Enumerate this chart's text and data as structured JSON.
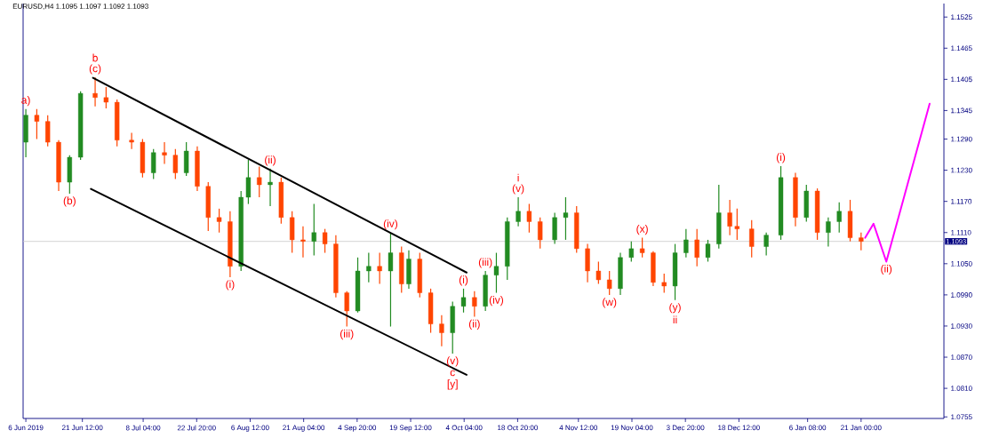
{
  "chart_data": {
    "type": "candlestick",
    "title": "EURUSD,H4 1.1095 1.1097 1.1092 1.1093",
    "x": [
      "2019-06-06",
      "2019-06-09",
      "2019-06-12",
      "2019-06-15",
      "2019-06-18",
      "2019-06-21",
      "2019-06-25",
      "2019-06-28",
      "2019-07-01",
      "2019-07-05",
      "2019-07-08",
      "2019-07-11",
      "2019-07-14",
      "2019-07-17",
      "2019-07-20",
      "2019-07-23",
      "2019-07-26",
      "2019-07-29",
      "2019-08-01",
      "2019-08-04",
      "2019-08-06",
      "2019-08-09",
      "2019-08-12",
      "2019-08-15",
      "2019-08-18",
      "2019-08-21",
      "2019-08-24",
      "2019-08-27",
      "2019-08-30",
      "2019-09-02",
      "2019-09-05",
      "2019-09-08",
      "2019-09-11",
      "2019-09-14",
      "2019-09-17",
      "2019-09-19",
      "2019-09-22",
      "2019-09-25",
      "2019-09-28",
      "2019-10-01",
      "2019-10-04",
      "2019-10-07",
      "2019-10-10",
      "2019-10-13",
      "2019-10-16",
      "2019-10-19",
      "2019-10-22",
      "2019-10-25",
      "2019-10-29",
      "2019-11-01",
      "2019-11-04",
      "2019-11-07",
      "2019-11-10",
      "2019-11-13",
      "2019-11-16",
      "2019-11-19",
      "2019-11-22",
      "2019-11-25",
      "2019-11-28",
      "2019-12-01",
      "2019-12-04",
      "2019-12-07",
      "2019-12-10",
      "2019-12-13",
      "2019-12-16",
      "2019-12-18",
      "2019-12-22",
      "2019-12-26",
      "2019-12-30",
      "2020-01-03",
      "2020-01-06",
      "2020-01-09",
      "2020-01-12",
      "2020-01-15",
      "2020-01-18",
      "2020-01-21"
    ],
    "ohlc": [
      [
        1.1284,
        1.1348,
        1.1255,
        1.1336
      ],
      [
        1.1336,
        1.1348,
        1.129,
        1.1324
      ],
      [
        1.1324,
        1.1336,
        1.1276,
        1.1284
      ],
      [
        1.1284,
        1.1288,
        1.119,
        1.1207
      ],
      [
        1.1207,
        1.1259,
        1.1185,
        1.1255
      ],
      [
        1.1255,
        1.1382,
        1.125,
        1.1378
      ],
      [
        1.1378,
        1.1409,
        1.1353,
        1.137
      ],
      [
        1.137,
        1.139,
        1.1349,
        1.1361
      ],
      [
        1.1361,
        1.1366,
        1.1276,
        1.1288
      ],
      [
        1.1288,
        1.1302,
        1.1271,
        1.1284
      ],
      [
        1.1284,
        1.129,
        1.1216,
        1.1225
      ],
      [
        1.1225,
        1.1271,
        1.1213,
        1.1264
      ],
      [
        1.1264,
        1.1284,
        1.1242,
        1.1259
      ],
      [
        1.1259,
        1.1271,
        1.1213,
        1.1225
      ],
      [
        1.1225,
        1.1284,
        1.1219,
        1.1267
      ],
      [
        1.1267,
        1.1276,
        1.119,
        1.1199
      ],
      [
        1.1199,
        1.1207,
        1.1113,
        1.1139
      ],
      [
        1.1139,
        1.1156,
        1.111,
        1.1131
      ],
      [
        1.1131,
        1.1151,
        1.1024,
        1.1045
      ],
      [
        1.1045,
        1.119,
        1.1036,
        1.1178
      ],
      [
        1.1178,
        1.125,
        1.1165,
        1.1216
      ],
      [
        1.1216,
        1.1237,
        1.1178,
        1.1202
      ],
      [
        1.1202,
        1.1233,
        1.1161,
        1.1207
      ],
      [
        1.1207,
        1.1216,
        1.1127,
        1.1139
      ],
      [
        1.1139,
        1.1151,
        1.1071,
        1.1096
      ],
      [
        1.1096,
        1.1122,
        1.1062,
        1.1093
      ],
      [
        1.1093,
        1.1165,
        1.1066,
        1.111
      ],
      [
        1.111,
        1.1117,
        1.1071,
        1.1088
      ],
      [
        1.1088,
        1.1105,
        1.0985,
        1.0994
      ],
      [
        1.0994,
        1.0997,
        1.0929,
        1.0959
      ],
      [
        1.0959,
        1.1062,
        1.0956,
        1.1036
      ],
      [
        1.1036,
        1.1071,
        1.1014,
        1.1045
      ],
      [
        1.1045,
        1.1071,
        1.1011,
        1.1036
      ],
      [
        1.1036,
        1.111,
        1.0929,
        1.1071
      ],
      [
        1.1071,
        1.1083,
        1.0994,
        1.1011
      ],
      [
        1.1011,
        1.1076,
        1.1002,
        1.1059
      ],
      [
        1.1059,
        1.1071,
        1.0985,
        1.0994
      ],
      [
        1.0994,
        1.1002,
        1.0917,
        1.0934
      ],
      [
        1.0934,
        1.0951,
        1.0891,
        1.0917
      ],
      [
        1.0917,
        1.0977,
        1.0877,
        1.0968
      ],
      [
        1.0968,
        1.1002,
        1.0956,
        1.0985
      ],
      [
        1.0985,
        1.0997,
        1.0948,
        1.0968
      ],
      [
        1.0968,
        1.1036,
        1.0959,
        1.1028
      ],
      [
        1.1028,
        1.1071,
        1.0994,
        1.1045
      ],
      [
        1.1045,
        1.1139,
        1.1019,
        1.1131
      ],
      [
        1.1131,
        1.1178,
        1.1122,
        1.1151
      ],
      [
        1.1151,
        1.1165,
        1.111,
        1.1131
      ],
      [
        1.1131,
        1.1139,
        1.1079,
        1.1096
      ],
      [
        1.1096,
        1.1148,
        1.1088,
        1.1139
      ],
      [
        1.1139,
        1.1178,
        1.1096,
        1.1148
      ],
      [
        1.1148,
        1.1161,
        1.1071,
        1.1079
      ],
      [
        1.1079,
        1.1088,
        1.1014,
        1.1036
      ],
      [
        1.1036,
        1.1054,
        1.1011,
        1.1019
      ],
      [
        1.1019,
        1.1036,
        1.099,
        1.1002
      ],
      [
        1.1002,
        1.1071,
        1.099,
        1.1062
      ],
      [
        1.1062,
        1.1093,
        1.1054,
        1.1079
      ],
      [
        1.1079,
        1.11,
        1.1062,
        1.1071
      ],
      [
        1.1071,
        1.1074,
        1.1007,
        1.1014
      ],
      [
        1.1014,
        1.1031,
        1.0994,
        1.1007
      ],
      [
        1.1007,
        1.1088,
        1.098,
        1.1071
      ],
      [
        1.1071,
        1.1117,
        1.1062,
        1.1096
      ],
      [
        1.1096,
        1.1117,
        1.1045,
        1.1062
      ],
      [
        1.1062,
        1.1096,
        1.1054,
        1.1088
      ],
      [
        1.1088,
        1.1202,
        1.1079,
        1.1148
      ],
      [
        1.1148,
        1.1173,
        1.1105,
        1.1122
      ],
      [
        1.1122,
        1.1156,
        1.1096,
        1.1117
      ],
      [
        1.1117,
        1.1134,
        1.1062,
        1.1083
      ],
      [
        1.1083,
        1.111,
        1.1066,
        1.1105
      ],
      [
        1.1105,
        1.1238,
        1.1096,
        1.1216
      ],
      [
        1.1216,
        1.1225,
        1.1122,
        1.1139
      ],
      [
        1.1139,
        1.1202,
        1.1131,
        1.119
      ],
      [
        1.119,
        1.1195,
        1.1096,
        1.111
      ],
      [
        1.111,
        1.1139,
        1.1083,
        1.1131
      ],
      [
        1.1131,
        1.1168,
        1.111,
        1.1151
      ],
      [
        1.1151,
        1.1173,
        1.1093,
        1.11
      ],
      [
        1.11,
        1.111,
        1.1076,
        1.1093
      ]
    ],
    "colors": [
      "#228b22",
      "#ff4500",
      "#ff4500",
      "#ff4500",
      "#228b22",
      "#228b22",
      "#ff4500",
      "#ff4500",
      "#ff4500",
      "#ff4500",
      "#ff4500",
      "#228b22",
      "#ff4500",
      "#ff4500",
      "#228b22",
      "#ff4500",
      "#ff4500",
      "#ff4500",
      "#ff4500",
      "#228b22",
      "#228b22",
      "#ff4500",
      "#228b22",
      "#ff4500",
      "#ff4500",
      "#ff4500",
      "#228b22",
      "#ff4500",
      "#ff4500",
      "#ff4500",
      "#228b22",
      "#228b22",
      "#ff4500",
      "#228b22",
      "#ff4500",
      "#228b22",
      "#ff4500",
      "#ff4500",
      "#ff4500",
      "#228b22",
      "#228b22",
      "#ff4500",
      "#228b22",
      "#228b22",
      "#228b22",
      "#228b22",
      "#ff4500",
      "#ff4500",
      "#228b22",
      "#228b22",
      "#ff4500",
      "#ff4500",
      "#ff4500",
      "#ff4500",
      "#228b22",
      "#228b22",
      "#ff4500",
      "#ff4500",
      "#ff4500",
      "#228b22",
      "#228b22",
      "#ff4500",
      "#228b22",
      "#228b22",
      "#ff4500",
      "#ff4500",
      "#ff4500",
      "#228b22",
      "#228b22",
      "#ff4500",
      "#228b22",
      "#ff4500",
      "#228b22",
      "#228b22",
      "#ff4500",
      "#ff4500"
    ],
    "series": [
      {
        "type": "line",
        "color": "#000000",
        "x": [
          "2019-06-24T10:00",
          "2019-10-04T20:00"
        ],
        "values": [
          1.1408,
          1.1033
        ]
      },
      {
        "type": "line",
        "color": "#000000",
        "x": [
          "2019-06-23T20:00",
          "2019-10-04T20:00"
        ],
        "values": [
          1.1194,
          1.0836
        ]
      },
      {
        "type": "line",
        "color": "#ff00ff",
        "x": [
          "2020-01-22T03:00",
          "2020-01-24T10:00",
          "2020-01-27T22:00",
          "2020-02-08T19:00"
        ],
        "values": [
          1.11,
          1.1127,
          1.1054,
          1.1358
        ]
      }
    ],
    "xlim": [
      "2019-06-05T06:00",
      "2020-02-12T17:00"
    ],
    "xticks": [
      {
        "value": "2019-06-06T00:00",
        "label": "6 Jun 2019"
      },
      {
        "value": "2019-06-21T12:00",
        "label": "21 Jun 12:00"
      },
      {
        "value": "2019-07-08T04:00",
        "label": "8 Jul 04:00"
      },
      {
        "value": "2019-07-22T20:00",
        "label": "22 Jul 20:00"
      },
      {
        "value": "2019-08-06T12:00",
        "label": "6 Aug 12:00"
      },
      {
        "value": "2019-08-21T04:00",
        "label": "21 Aug 04:00"
      },
      {
        "value": "2019-09-04T20:00",
        "label": "4 Sep 20:00"
      },
      {
        "value": "2019-09-19T12:00",
        "label": "19 Sep 12:00"
      },
      {
        "value": "2019-10-04T04:00",
        "label": "4 Oct 04:00"
      },
      {
        "value": "2019-10-18T20:00",
        "label": "18 Oct 20:00"
      },
      {
        "value": "2019-11-04T12:00",
        "label": "4 Nov 12:00"
      },
      {
        "value": "2019-11-19T04:00",
        "label": "19 Nov 04:00"
      },
      {
        "value": "2019-12-03T20:00",
        "label": "3 Dec 20:00"
      },
      {
        "value": "2019-12-18T12:00",
        "label": "18 Dec 12:00"
      },
      {
        "value": "2020-01-06T08:00",
        "label": "6 Jan 08:00"
      },
      {
        "value": "2020-01-21T00:00",
        "label": "21 Jan 00:00"
      }
    ],
    "ylim": [
      1.0752,
      1.1551
    ],
    "yticks": [
      1.0755,
      {
        "value": 1.081,
        "label": "1.0810"
      },
      {
        "value": 1.087,
        "label": "1.0870"
      },
      {
        "value": 1.093,
        "label": "1.0930"
      },
      {
        "value": 1.099,
        "label": "1.0990"
      },
      {
        "value": 1.105,
        "label": "1.1050"
      },
      {
        "value": 1.111,
        "label": "1.1110"
      },
      {
        "value": 1.117,
        "label": "1.1170"
      },
      {
        "value": 1.123,
        "label": "1.1230"
      },
      {
        "value": 1.129,
        "label": "1.1290"
      },
      1.1345,
      1.1405,
      1.1465,
      1.1525
    ],
    "ref_lines": [
      {
        "axis": "y",
        "value": 1.1093,
        "label": "1.1093",
        "color": "#c8c8c8"
      }
    ],
    "annotations": [
      {
        "text": "a)",
        "x": "2019-06-06",
        "y": 1.1348
      },
      {
        "text": "(b)",
        "x": "2019-06-18",
        "y": 1.1185
      },
      {
        "text": "(c)",
        "x": "2019-06-25",
        "y": 1.1409
      },
      {
        "text": "b",
        "x": "2019-06-25",
        "y": 1.1409
      },
      {
        "text": "(i)",
        "x": "2019-08-01",
        "y": 1.1024
      },
      {
        "text": "(ii)",
        "x": "2019-08-12",
        "y": 1.1233
      },
      {
        "text": "(iii)",
        "x": "2019-09-02",
        "y": 1.0929
      },
      {
        "text": "(iv)",
        "x": "2019-09-14",
        "y": 1.111
      },
      {
        "text": "(v)",
        "x": "2019-10-01",
        "y": 1.0877
      },
      {
        "text": "c",
        "x": "2019-10-01",
        "y": 1.0877
      },
      {
        "text": "[y]",
        "x": "2019-10-01",
        "y": 1.0877
      },
      {
        "text": "(i)",
        "x": "2019-10-04",
        "y": 1.1002
      },
      {
        "text": "(ii)",
        "x": "2019-10-07",
        "y": 1.0948
      },
      {
        "text": "(iii)",
        "x": "2019-10-10",
        "y": 1.1036
      },
      {
        "text": "(iv)",
        "x": "2019-10-13",
        "y": 1.0994
      },
      {
        "text": "(v)",
        "x": "2019-10-19",
        "y": 1.1178
      },
      {
        "text": "i",
        "x": "2019-10-19",
        "y": 1.1178
      },
      {
        "text": "(w)",
        "x": "2019-11-13",
        "y": 1.099
      },
      {
        "text": "(x)",
        "x": "2019-11-22",
        "y": 1.11
      },
      {
        "text": "(y)",
        "x": "2019-12-01",
        "y": 1.098
      },
      {
        "text": "ii",
        "x": "2019-12-01",
        "y": 1.098
      },
      {
        "text": "(i)",
        "x": "2019-12-30",
        "y": 1.1238
      },
      {
        "text": "(ii)",
        "x": "2020-01-27T22:00",
        "y": 1.1054
      }
    ]
  }
}
